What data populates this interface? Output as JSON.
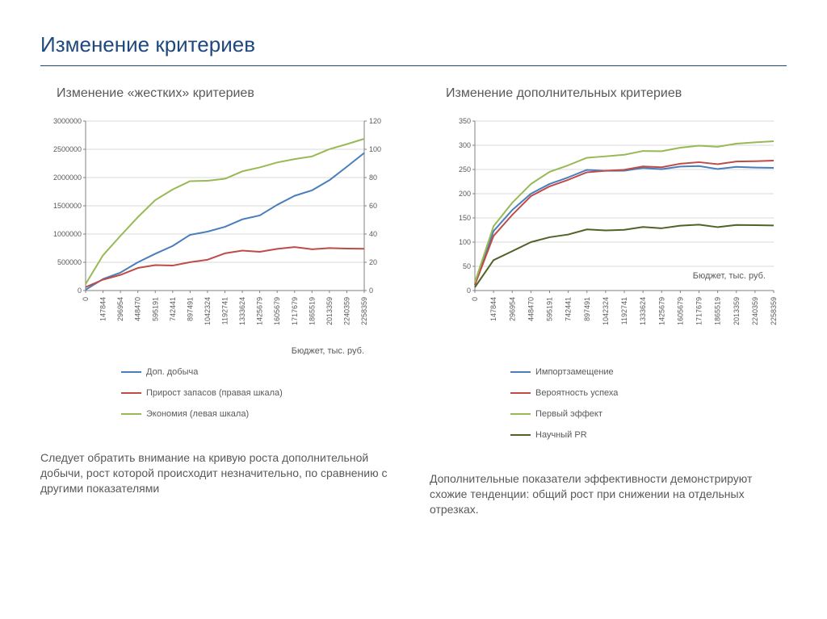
{
  "page": {
    "title": "Изменение критериев"
  },
  "chart_left": {
    "title": "Изменение «жестких» критериев",
    "type": "line",
    "x_categories": [
      "0",
      "147844",
      "296954",
      "448470",
      "595191",
      "742441",
      "897491",
      "1042324",
      "1192741",
      "1333624",
      "1425679",
      "1605679",
      "1717679",
      "1865519",
      "2013359",
      "2240359",
      "2258359"
    ],
    "x_axis_label": "Бюджет, тыс. руб.",
    "y_left": {
      "min": 0,
      "max": 3000000,
      "step": 500000
    },
    "y_right": {
      "min": 0,
      "max": 120,
      "step": 20
    },
    "series": [
      {
        "name": "Доп. добыча",
        "color": "#4a7ebb",
        "axis": "left",
        "values": [
          0,
          180000,
          350000,
          500000,
          650000,
          800000,
          950000,
          1050000,
          1150000,
          1250000,
          1350000,
          1500000,
          1650000,
          1800000,
          1950000,
          2200000,
          2450000
        ]
      },
      {
        "name": "Прирост запасов (правая шкала)",
        "color": "#be4b48",
        "axis": "right",
        "values": [
          2,
          7,
          12,
          16,
          18,
          18,
          19,
          22,
          27,
          28,
          28,
          29,
          30,
          30,
          30,
          30,
          30
        ]
      },
      {
        "name": "Экономия (левая шкала)",
        "color": "#98b954",
        "axis": "left",
        "values": [
          100000,
          600000,
          1000000,
          1300000,
          1600000,
          1800000,
          1900000,
          1950000,
          2000000,
          2100000,
          2200000,
          2250000,
          2300000,
          2400000,
          2500000,
          2600000,
          2700000
        ]
      }
    ],
    "tick_fontsize": 9,
    "tick_color": "#595959",
    "grid_color": "#d9d9d9",
    "axis_color": "#808080",
    "caption": "Следует обратить внимание на кривую роста дополнительной добычи, рост которой происходит незначительно, по сравнению с другими показателями"
  },
  "chart_right": {
    "title": "Изменение дополнительных критериев",
    "type": "line",
    "x_categories": [
      "0",
      "147844",
      "296954",
      "448470",
      "595191",
      "742441",
      "897491",
      "1042324",
      "1192741",
      "1333624",
      "1425679",
      "1605679",
      "1717679",
      "1865519",
      "2013359",
      "2240359",
      "2258359"
    ],
    "x_axis_label": "Бюджет, тыс. руб.",
    "y_left": {
      "min": 0,
      "max": 350,
      "step": 50
    },
    "series": [
      {
        "name": "Импортзамещение",
        "color": "#4a7ebb",
        "values": [
          10,
          120,
          170,
          200,
          220,
          235,
          245,
          248,
          250,
          252,
          253,
          254,
          254,
          254,
          255,
          255,
          255
        ]
      },
      {
        "name": "Вероятность успеха",
        "color": "#be4b48",
        "values": [
          10,
          110,
          160,
          195,
          215,
          230,
          240,
          248,
          252,
          255,
          257,
          260,
          262,
          264,
          266,
          268,
          270
        ]
      },
      {
        "name": "Первый эффект",
        "color": "#98b954",
        "values": [
          15,
          130,
          185,
          220,
          245,
          260,
          270,
          278,
          283,
          287,
          290,
          293,
          296,
          300,
          303,
          307,
          310
        ]
      },
      {
        "name": "Научный PR",
        "color": "#4f6228",
        "values": [
          5,
          60,
          85,
          100,
          110,
          117,
          122,
          125,
          128,
          130,
          131,
          132,
          133,
          134,
          135,
          136,
          136
        ]
      }
    ],
    "tick_fontsize": 9,
    "tick_color": "#595959",
    "grid_color": "#d9d9d9",
    "axis_color": "#808080",
    "axis_label_inside": true,
    "caption": "Дополнительные показатели эффективности демонстрируют схожие тенденции: общий рост при снижении на отдельных отрезках."
  }
}
